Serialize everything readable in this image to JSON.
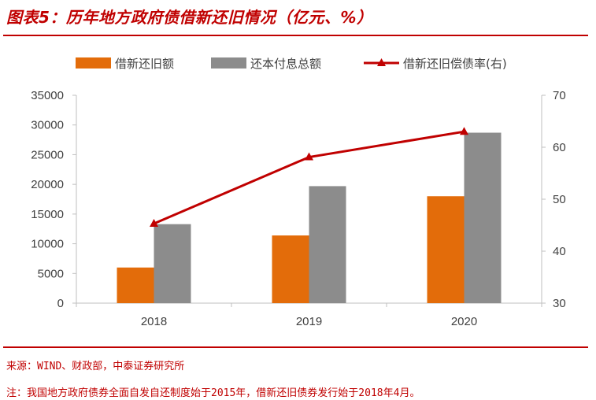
{
  "title": "图表5：历年地方政府债借新还旧情况（亿元、%）",
  "source": "来源：WIND、财政部，中泰证券研究所",
  "note": "注：我国地方政府债券全面自发自还制度始于2015年，借新还旧债券发行始于2018年4月。",
  "colors": {
    "accent": "#c00000",
    "orange": "#e36c0a",
    "gray": "#8c8c8c",
    "line": "#c00000"
  },
  "chart_data": {
    "type": "bar",
    "categories": [
      "2018",
      "2019",
      "2020"
    ],
    "series": [
      {
        "name": "借新还旧额",
        "kind": "bar",
        "axis": "left",
        "color": "#e36c0a",
        "values": [
          6000,
          11400,
          18000
        ]
      },
      {
        "name": "还本付息总额",
        "kind": "bar",
        "axis": "left",
        "color": "#8c8c8c",
        "values": [
          13300,
          19700,
          28700
        ]
      },
      {
        "name": "借新还旧偿债率(右)",
        "kind": "line",
        "axis": "right",
        "color": "#c00000",
        "values": [
          45.3,
          58.1,
          63.0
        ]
      }
    ],
    "ylim": [
      0,
      35000
    ],
    "yticks": [
      "0",
      "5000",
      "10000",
      "15000",
      "20000",
      "25000",
      "30000",
      "35000"
    ],
    "y2lim": [
      30,
      70
    ],
    "y2ticks": [
      "30",
      "40",
      "50",
      "60",
      "70"
    ],
    "legend_position": "top",
    "grid": false
  }
}
